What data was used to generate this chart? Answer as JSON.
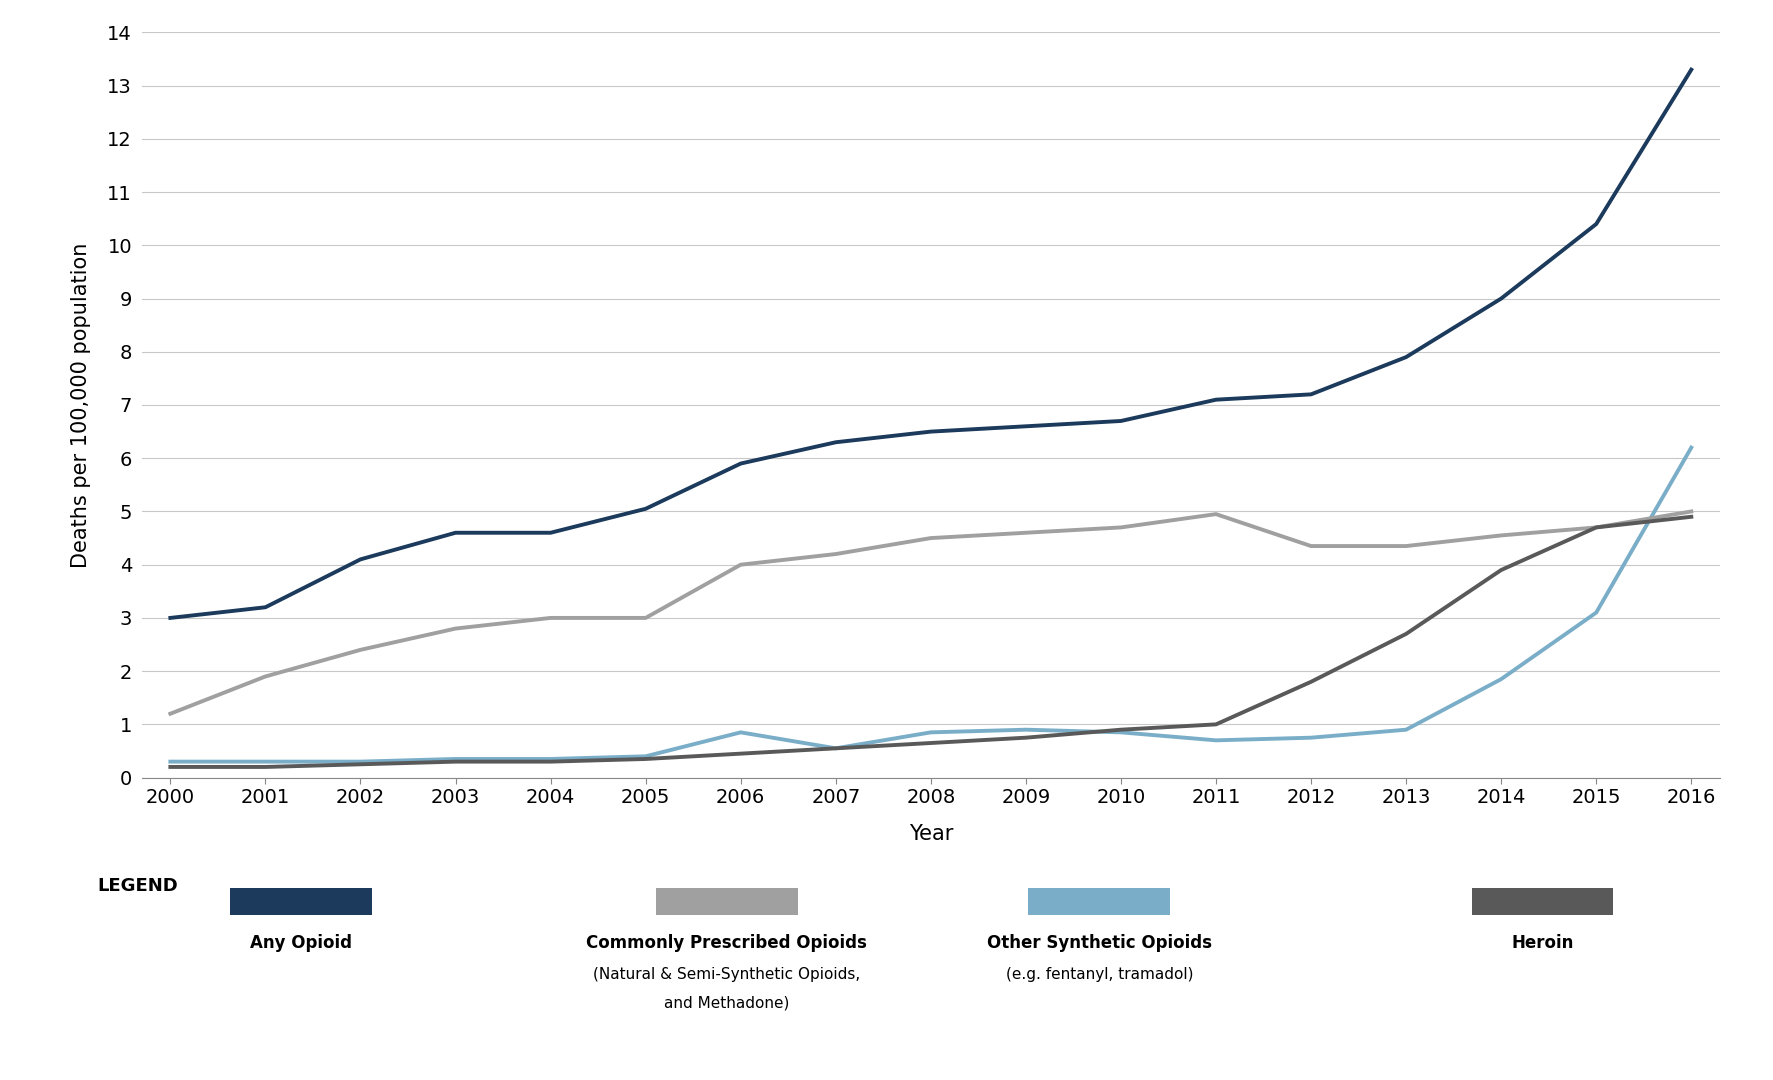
{
  "years": [
    2000,
    2001,
    2002,
    2003,
    2004,
    2005,
    2006,
    2007,
    2008,
    2009,
    2010,
    2011,
    2012,
    2013,
    2014,
    2015,
    2016
  ],
  "any_opioid": [
    3.0,
    3.2,
    4.1,
    4.6,
    4.6,
    5.05,
    5.9,
    6.3,
    6.5,
    6.6,
    6.7,
    7.1,
    7.2,
    7.9,
    9.0,
    10.4,
    13.3
  ],
  "commonly_prescribed": [
    1.2,
    1.9,
    2.4,
    2.8,
    3.0,
    3.0,
    4.0,
    4.2,
    4.5,
    4.6,
    4.7,
    4.95,
    4.35,
    4.35,
    4.55,
    4.7,
    5.0
  ],
  "other_synthetic": [
    0.3,
    0.3,
    0.3,
    0.35,
    0.35,
    0.4,
    0.85,
    0.55,
    0.85,
    0.9,
    0.85,
    0.7,
    0.75,
    0.9,
    1.85,
    3.1,
    6.2
  ],
  "heroin": [
    0.2,
    0.2,
    0.25,
    0.3,
    0.3,
    0.35,
    0.45,
    0.55,
    0.65,
    0.75,
    0.9,
    1.0,
    1.8,
    2.7,
    3.9,
    4.7,
    4.9
  ],
  "any_opioid_color": "#1b3a5c",
  "commonly_prescribed_color": "#a0a0a0",
  "other_synthetic_color": "#7aaec8",
  "heroin_color": "#595959",
  "background_color": "#ffffff",
  "grid_color": "#c8c8c8",
  "ylabel": "Deaths per 100,000 population",
  "xlabel": "Year",
  "ylim": [
    0,
    14
  ],
  "yticks": [
    0,
    1,
    2,
    3,
    4,
    5,
    6,
    7,
    8,
    9,
    10,
    11,
    12,
    13,
    14
  ],
  "legend_label_any": "Any Opioid",
  "legend_label_prescribed_line1": "Commonly Prescribed Opioids",
  "legend_label_prescribed_line2": "(Natural & Semi-Synthetic Opioids,",
  "legend_label_prescribed_line3": "and Methadone)",
  "legend_label_synthetic_line1": "Other Synthetic Opioids",
  "legend_label_synthetic_line2": "(e.g. fentanyl, tramadol)",
  "legend_label_heroin": "Heroin",
  "legend_title": "LEGEND",
  "line_width": 2.8,
  "tick_fontsize": 14,
  "label_fontsize": 15,
  "legend_fontsize": 12,
  "legend_title_fontsize": 13
}
